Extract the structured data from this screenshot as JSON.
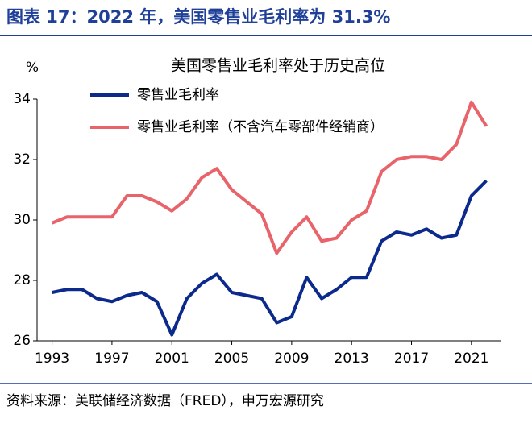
{
  "header": {
    "title": "图表 17：2022 年，美国零售业毛利率为 31.3%"
  },
  "chart_data": {
    "type": "line",
    "title": "美国零售业毛利率处于历史高位",
    "y_label": "%",
    "x": [
      1993,
      1994,
      1995,
      1996,
      1997,
      1998,
      1999,
      2000,
      2001,
      2002,
      2003,
      2004,
      2005,
      2006,
      2007,
      2008,
      2009,
      2010,
      2011,
      2012,
      2013,
      2014,
      2015,
      2016,
      2017,
      2018,
      2019,
      2020,
      2021,
      2022
    ],
    "series": [
      {
        "name": "零售业毛利率",
        "color": "#0b2a8c",
        "values": [
          27.6,
          27.7,
          27.7,
          27.4,
          27.3,
          27.5,
          27.6,
          27.3,
          26.2,
          27.4,
          27.9,
          28.2,
          27.6,
          27.5,
          27.4,
          26.6,
          26.8,
          28.1,
          27.4,
          27.7,
          28.1,
          28.1,
          29.3,
          29.6,
          29.5,
          29.7,
          29.4,
          29.5,
          30.8,
          31.3
        ]
      },
      {
        "name": "零售业毛利率（不含汽车零部件经销商）",
        "color": "#e8636a",
        "values": [
          29.9,
          30.1,
          30.1,
          30.1,
          30.1,
          30.8,
          30.8,
          30.6,
          30.3,
          30.7,
          31.4,
          31.7,
          31.0,
          30.6,
          30.2,
          28.9,
          29.6,
          30.1,
          29.3,
          29.4,
          30.0,
          30.3,
          31.6,
          32.0,
          32.1,
          32.1,
          32.0,
          32.5,
          33.9,
          33.1
        ]
      }
    ],
    "xlim": [
      1992,
      2023
    ],
    "xticks": [
      1993,
      1997,
      2001,
      2005,
      2009,
      2013,
      2017,
      2021
    ],
    "ylim": [
      26,
      34
    ],
    "yticks": [
      26,
      28,
      30,
      32,
      34
    ]
  },
  "footer": {
    "source": "资料来源：美联储经济数据（FRED），申万宏源研究"
  }
}
